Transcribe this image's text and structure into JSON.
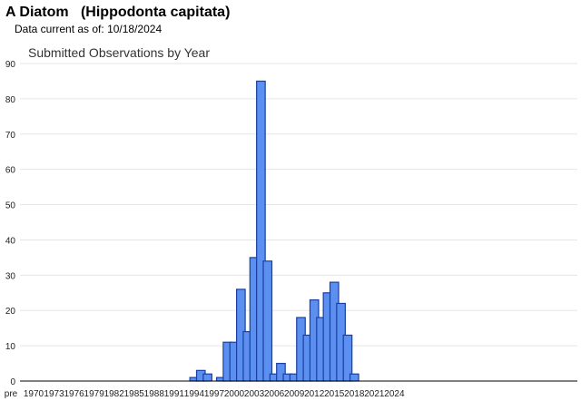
{
  "header": {
    "title": "A Diatom   (Hippodonta capitata)",
    "current_label": "Data current as of:",
    "current_date": "10/18/2024"
  },
  "chart_data": {
    "type": "bar",
    "title": "Submitted Observations by Year",
    "xlabel": "",
    "ylabel": "",
    "ylim": [
      0,
      90
    ],
    "yticks": [
      0,
      10,
      20,
      30,
      40,
      50,
      60,
      70,
      80,
      90
    ],
    "grid": true,
    "colors": {
      "bar_fill": "#5b8ff0",
      "bar_stroke": "#1a3fa0",
      "grid": "#e6e6e6",
      "axis": "#000000"
    },
    "categories": [
      "pre 1970",
      "1971",
      "1972",
      "1973",
      "1974",
      "1975",
      "1976",
      "1977",
      "1978",
      "1979",
      "1980",
      "1981",
      "1982",
      "1983",
      "1984",
      "1985",
      "1986",
      "1987",
      "1988",
      "1989",
      "1990",
      "1991",
      "1992",
      "1993",
      "1994",
      "1995",
      "1996",
      "1997",
      "1998",
      "1999",
      "2000",
      "2001",
      "2002",
      "2003",
      "2004",
      "2005",
      "2006",
      "2007",
      "2008",
      "2009",
      "2010",
      "2011",
      "2012",
      "2013",
      "2014",
      "2015",
      "2016",
      "2017",
      "2018",
      "2019",
      "2020",
      "2021",
      "2022",
      "2023",
      "2024"
    ],
    "tick_labels": [
      "pre",
      "1970",
      "1973",
      "1976",
      "1979",
      "1982",
      "1985",
      "1988",
      "1991",
      "1994",
      "1997",
      "2000",
      "2003",
      "2006",
      "2009",
      "2012",
      "2015",
      "2018",
      "2021",
      "2024"
    ],
    "values": [
      0,
      0,
      0,
      0,
      0,
      0,
      0,
      0,
      0,
      0,
      0,
      0,
      0,
      0,
      0,
      0,
      0,
      0,
      0,
      0,
      0,
      0,
      0,
      0,
      1,
      3,
      2,
      0,
      1,
      11,
      11,
      26,
      14,
      35,
      85,
      34,
      2,
      5,
      2,
      2,
      18,
      13,
      23,
      18,
      25,
      28,
      22,
      13,
      2,
      0,
      0,
      0,
      0,
      0,
      0
    ]
  }
}
